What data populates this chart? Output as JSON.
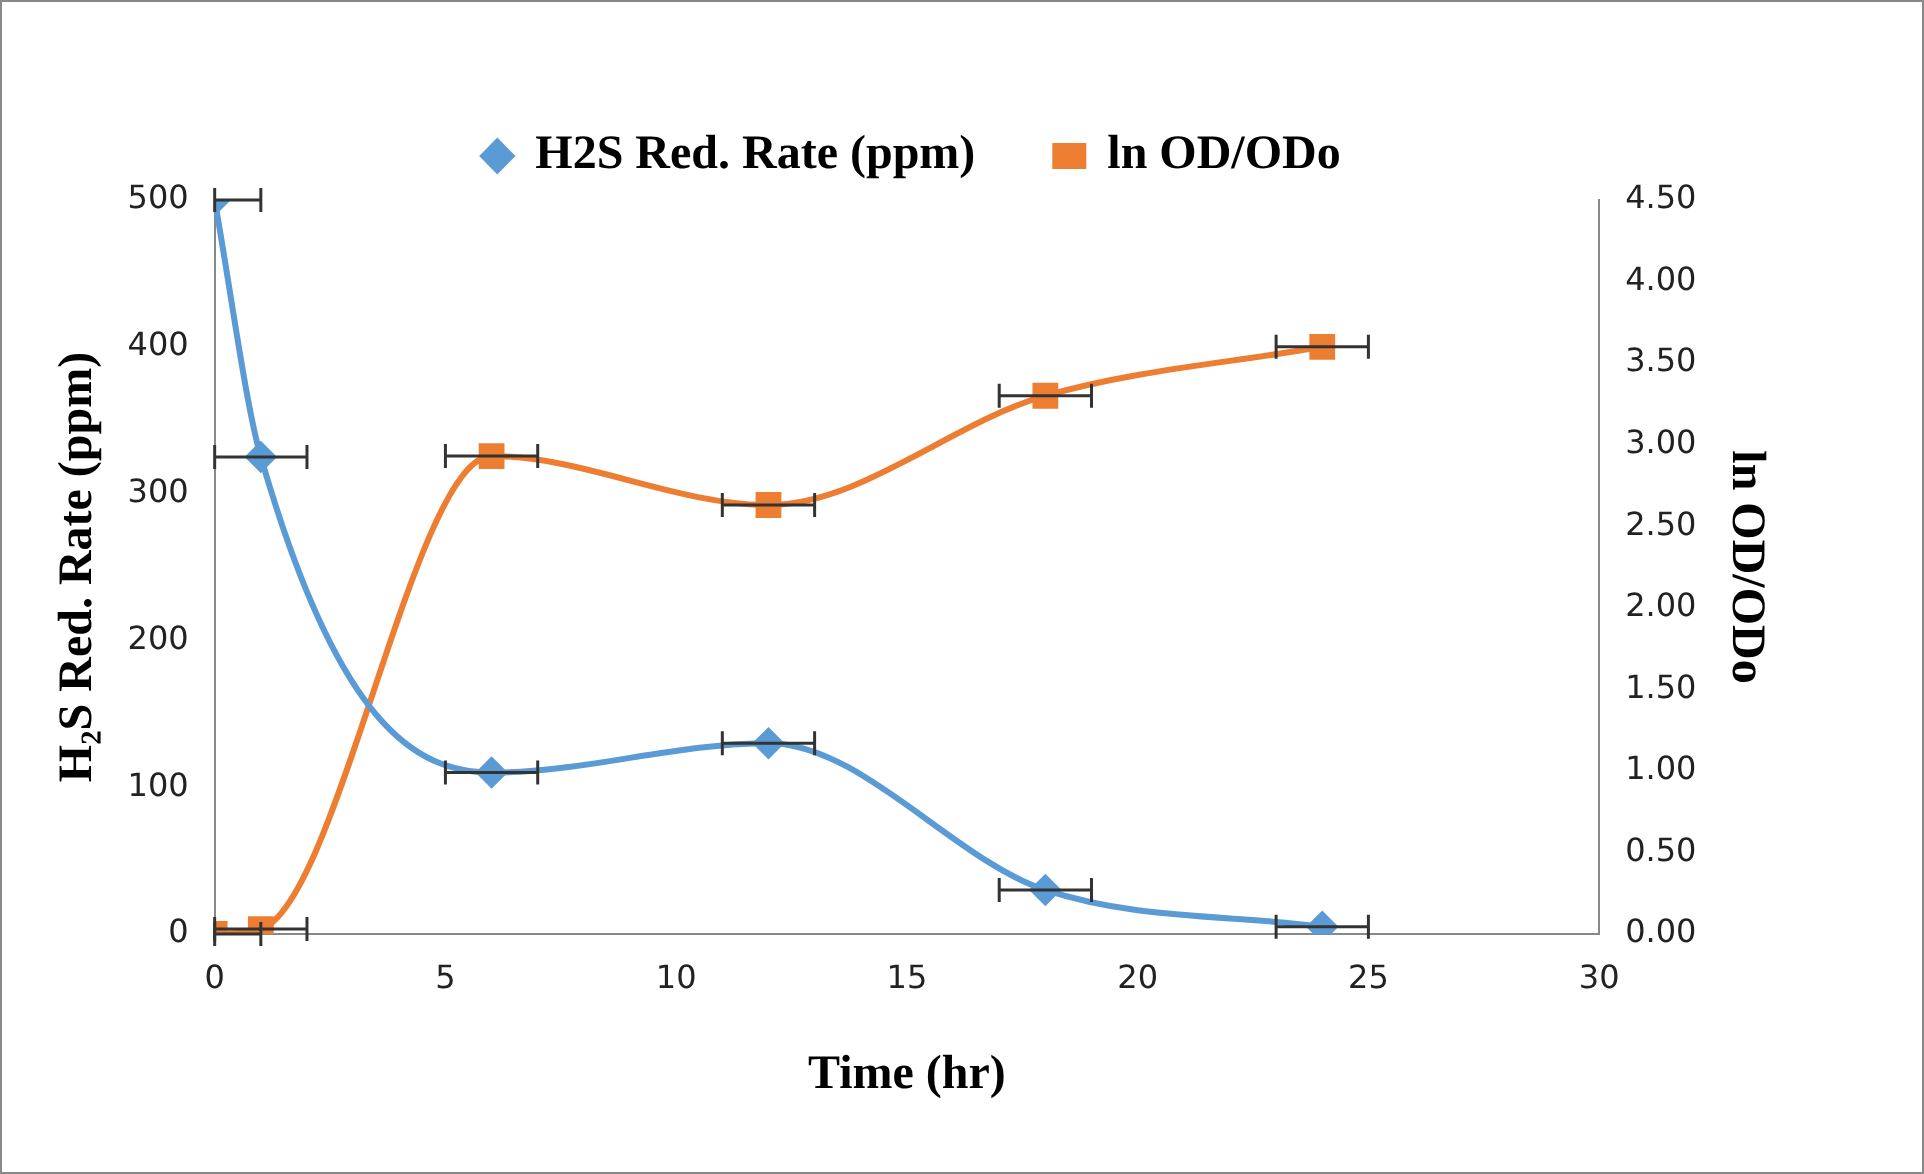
{
  "chart_data": {
    "type": "line",
    "xlabel": "Time (hr)",
    "ylabel": "H₂S Red. Rate (ppm)",
    "y2label": "ln OD/ODo",
    "x": [
      0,
      1,
      6,
      12,
      18,
      24
    ],
    "series": [
      {
        "name": "H2S Red. Rate (ppm)",
        "color": "#5b9bd5",
        "marker": "diamond",
        "values": [
          500,
          325,
          110,
          130,
          30,
          5
        ],
        "xerrors": [
          [
            0,
            1
          ],
          1,
          1,
          1,
          1,
          1
        ]
      },
      {
        "name": "ln OD/ODo",
        "color": "#ed7d31",
        "marker": "square",
        "axis": "y2",
        "values": [
          0,
          0.03,
          2.93,
          2.63,
          3.3,
          3.6
        ],
        "xerrors": [
          [
            0,
            1
          ],
          1,
          1,
          1,
          1,
          1
        ]
      }
    ],
    "xlim": [
      0,
      30
    ],
    "xticks": [
      0,
      5,
      10,
      15,
      20,
      25,
      30
    ],
    "ylim": [
      0,
      500
    ],
    "yticks": [
      0,
      100,
      200,
      300,
      400,
      500
    ],
    "y2lim": [
      0,
      4.5
    ],
    "y2ticks": [
      {
        "value": 0,
        "label": "0.00"
      },
      {
        "value": 0.5,
        "label": "0.50"
      },
      {
        "value": 1,
        "label": "1.00"
      },
      {
        "value": 1.5,
        "label": "1.50"
      },
      {
        "value": 2,
        "label": "2.00"
      },
      {
        "value": 2.5,
        "label": "2.50"
      },
      {
        "value": 3,
        "label": "3.00"
      },
      {
        "value": 3.5,
        "label": "3.50"
      },
      {
        "value": 4,
        "label": "4.00"
      },
      {
        "value": 4.5,
        "label": "4.50"
      }
    ],
    "grid": false,
    "legend": "top",
    "line_style": "solid"
  }
}
